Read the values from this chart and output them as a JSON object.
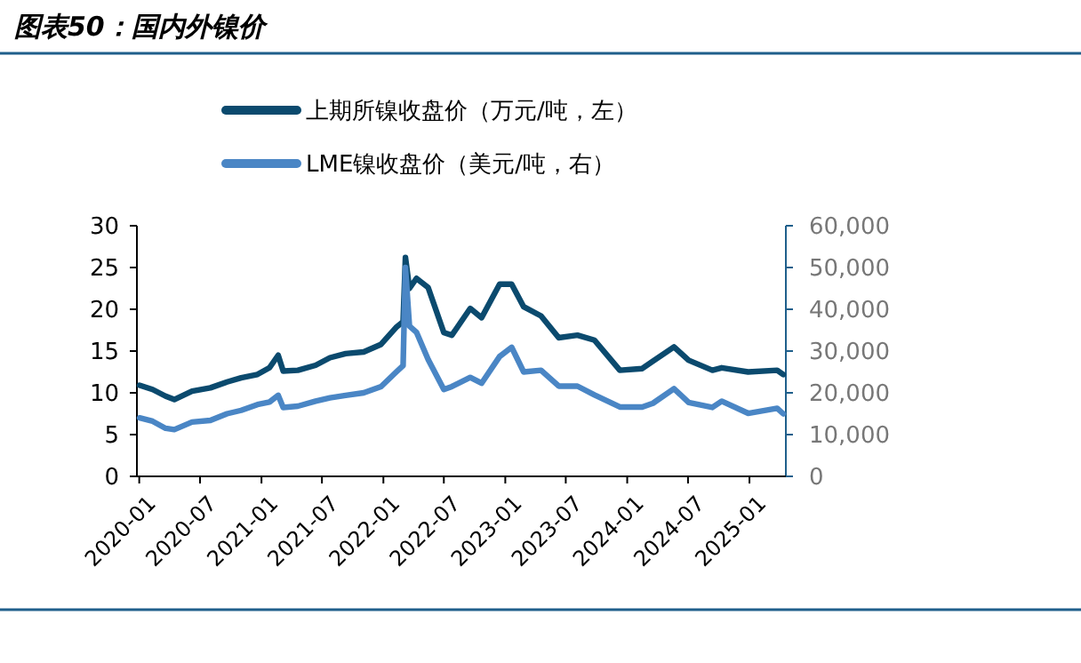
{
  "chart_data": {
    "type": "line",
    "title": "图表50：国内外镍价",
    "x": [
      "2020-01-02",
      "2020-02-10",
      "2020-03-20",
      "2020-04-15",
      "2020-06-07",
      "2020-08-01",
      "2020-09-20",
      "2020-11-01",
      "2020-12-20",
      "2021-01-25",
      "2021-02-20",
      "2021-03-07",
      "2021-04-20",
      "2021-06-12",
      "2021-07-25",
      "2021-09-10",
      "2021-11-03",
      "2021-12-25",
      "2022-02-10",
      "2022-03-01",
      "2022-03-08",
      "2022-03-20",
      "2022-04-10",
      "2022-05-15",
      "2022-07-01",
      "2022-07-25",
      "2022-09-18",
      "2022-10-22",
      "2022-12-15",
      "2023-01-20",
      "2023-02-25",
      "2023-04-18",
      "2023-06-10",
      "2023-08-05",
      "2023-09-25",
      "2023-12-10",
      "2024-02-15",
      "2024-03-18",
      "2024-05-20",
      "2024-07-03",
      "2024-09-12",
      "2024-10-10",
      "2024-12-28",
      "2025-03-25",
      "2025-04-12"
    ],
    "series": [
      {
        "name": "上期所镍收盘价（万元/吨，左）",
        "color": "#0b4a6e",
        "values": [
          10.9,
          10.4,
          9.6,
          9.2,
          10.2,
          10.6,
          11.3,
          11.8,
          12.2,
          13.0,
          14.5,
          12.6,
          12.7,
          13.3,
          14.2,
          14.7,
          14.9,
          15.8,
          17.9,
          18.5,
          26.2,
          22.5,
          23.7,
          22.6,
          17.2,
          16.9,
          20.1,
          19.0,
          23.0,
          23.0,
          20.3,
          19.2,
          16.6,
          16.9,
          16.3,
          12.7,
          12.9,
          13.8,
          15.5,
          13.9,
          12.7,
          13.0,
          12.5,
          12.7,
          12.2
        ]
      },
      {
        "name": "LME镍收盘价（美元/吨，右）",
        "color": "#4a86c5",
        "axis": "y2",
        "values": [
          14000,
          13200,
          11500,
          11200,
          13000,
          13400,
          15000,
          15800,
          17200,
          17800,
          19400,
          16500,
          16800,
          18000,
          18800,
          19400,
          20000,
          21500,
          25100,
          26500,
          50000,
          36000,
          34500,
          28000,
          20800,
          21500,
          23700,
          22300,
          28700,
          30900,
          25000,
          25400,
          21600,
          21600,
          19500,
          16600,
          16600,
          17500,
          21000,
          17700,
          16500,
          18000,
          15100,
          16300,
          15000
        ]
      }
    ],
    "xlim": [
      "2019-12-25",
      "2025-04-20"
    ],
    "xticks": [
      {
        "value": "2020-01-01",
        "label": "2020-01"
      },
      {
        "value": "2020-07-01",
        "label": "2020-07"
      },
      {
        "value": "2021-01-01",
        "label": "2021-01"
      },
      {
        "value": "2021-07-01",
        "label": "2021-07"
      },
      {
        "value": "2022-01-01",
        "label": "2022-01"
      },
      {
        "value": "2022-07-01",
        "label": "2022-07"
      },
      {
        "value": "2023-01-01",
        "label": "2023-01"
      },
      {
        "value": "2023-07-01",
        "label": "2023-07"
      },
      {
        "value": "2024-01-01",
        "label": "2024-01"
      },
      {
        "value": "2024-07-01",
        "label": "2024-07"
      },
      {
        "value": "2025-01-01",
        "label": "2025-01"
      }
    ],
    "ylim": [
      0,
      30
    ],
    "yticks": [
      0,
      5,
      10,
      15,
      20,
      25,
      30
    ],
    "y2lim": [
      0,
      60000
    ],
    "y2ticks": [
      0,
      {
        "value": 10000,
        "label": "10,000"
      },
      {
        "value": 20000,
        "label": "20,000"
      },
      {
        "value": 30000,
        "label": "30,000"
      },
      {
        "value": 40000,
        "label": "40,000"
      },
      {
        "value": 50000,
        "label": "50,000"
      },
      {
        "value": 60000,
        "label": "60,000"
      }
    ],
    "grid": false,
    "legend": "top",
    "line_style": "solid"
  }
}
